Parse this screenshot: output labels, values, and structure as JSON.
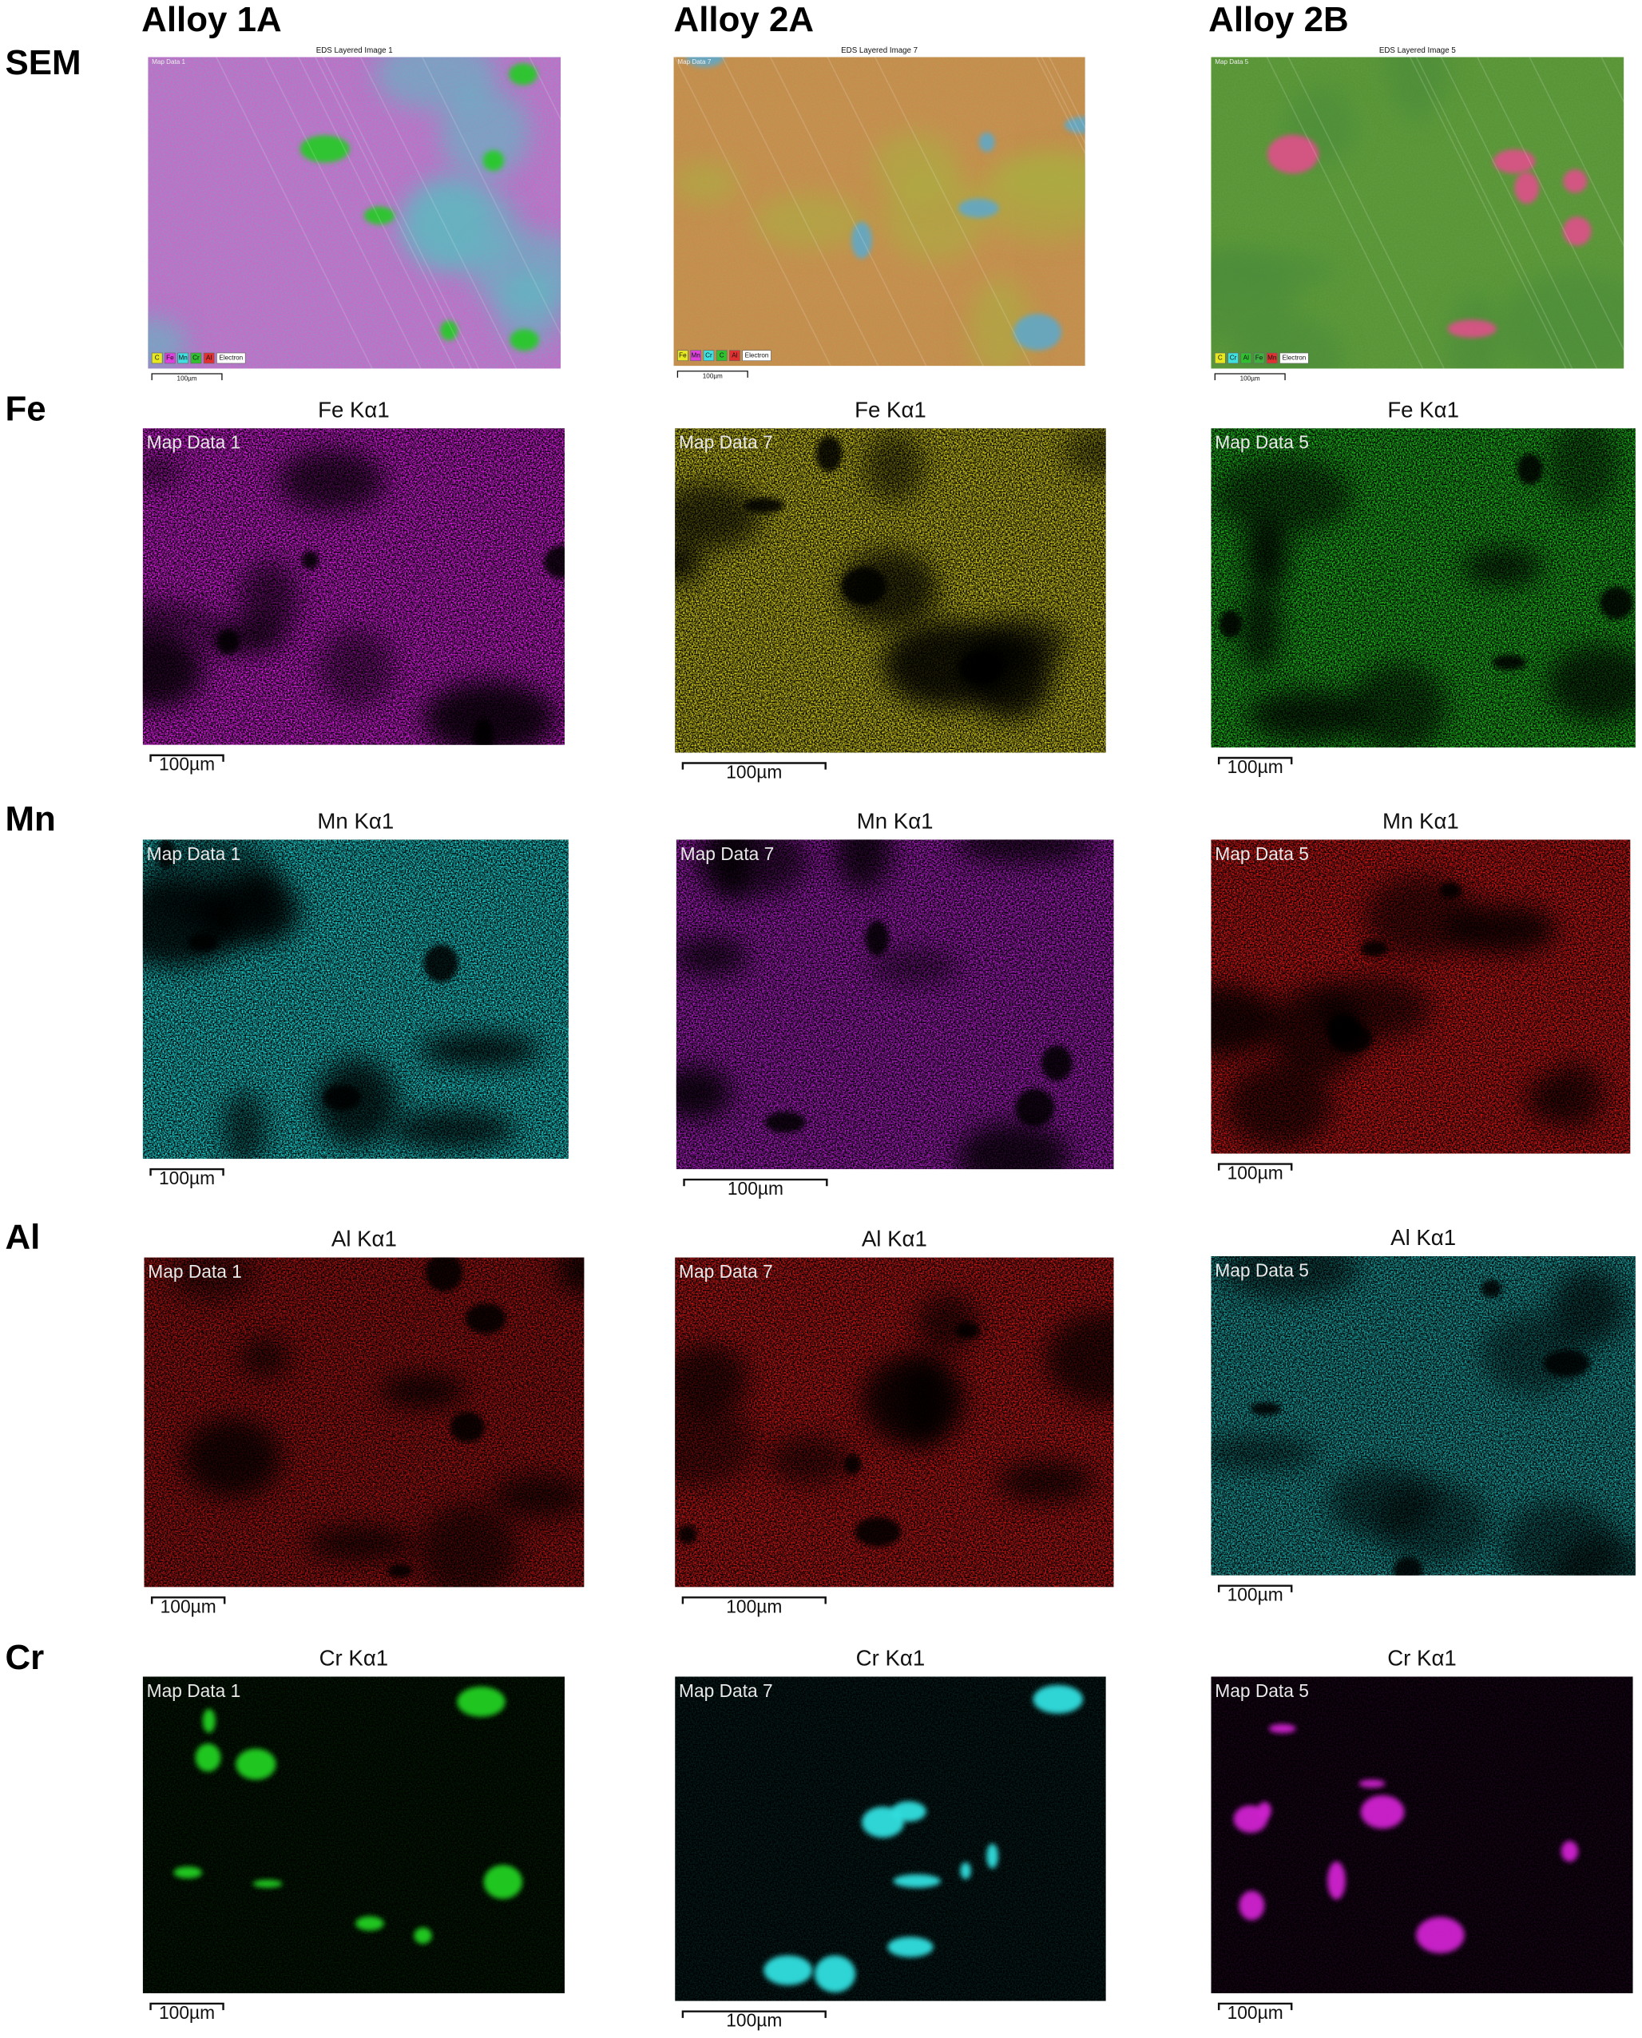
{
  "column_headers": [
    "Alloy 1A",
    "Alloy 2A",
    "Alloy 2B"
  ],
  "rows": [
    {
      "label": "SEM",
      "panels": [
        {
          "title": "EDS Layered Image 1",
          "map_label": "Map Data 1",
          "scale_bar": "100µm",
          "legend": [
            "C",
            "Fe",
            "Mn",
            "Cr",
            "Al",
            "Electron"
          ]
        },
        {
          "title": "EDS Layered Image 7",
          "map_label": "Map Data 7",
          "scale_bar": "100µm",
          "legend": [
            "Fe",
            "Mn",
            "Cr",
            "C",
            "Al",
            "Electron"
          ]
        },
        {
          "title": "EDS Layered Image 5",
          "map_label": "Map Data 5",
          "scale_bar": "100µm",
          "legend": [
            "C",
            "Cr",
            "Al",
            "Fe",
            "Mn",
            "Electron"
          ]
        }
      ]
    },
    {
      "label": "Fe",
      "panels": [
        {
          "title": "Fe Kα1",
          "map_label": "Map Data 1",
          "scale_bar": "100µm"
        },
        {
          "title": "Fe Kα1",
          "map_label": "Map Data 7",
          "scale_bar": "100µm"
        },
        {
          "title": "Fe Kα1",
          "map_label": "Map Data 5",
          "scale_bar": "100µm"
        }
      ]
    },
    {
      "label": "Mn",
      "panels": [
        {
          "title": "Mn Kα1",
          "map_label": "Map Data 1",
          "scale_bar": "100µm"
        },
        {
          "title": "Mn Kα1",
          "map_label": "Map Data 7",
          "scale_bar": "100µm"
        },
        {
          "title": "Mn Kα1",
          "map_label": "Map Data 5",
          "scale_bar": "100µm"
        }
      ]
    },
    {
      "label": "Al",
      "panels": [
        {
          "title": "Al Kα1",
          "map_label": "Map Data 1",
          "scale_bar": "100µm"
        },
        {
          "title": "Al Kα1",
          "map_label": "Map Data 7",
          "scale_bar": "100µm"
        },
        {
          "title": "Al Kα1",
          "map_label": "Map Data 5",
          "scale_bar": "100µm"
        }
      ]
    },
    {
      "label": "Cr",
      "panels": [
        {
          "title": "Cr Kα1",
          "map_label": "Map Data 1",
          "scale_bar": "100µm"
        },
        {
          "title": "Cr Kα1",
          "map_label": "Map Data 7",
          "scale_bar": "100µm"
        },
        {
          "title": "Cr Kα1",
          "map_label": "Map Data 5",
          "scale_bar": "100µm"
        }
      ]
    }
  ]
}
